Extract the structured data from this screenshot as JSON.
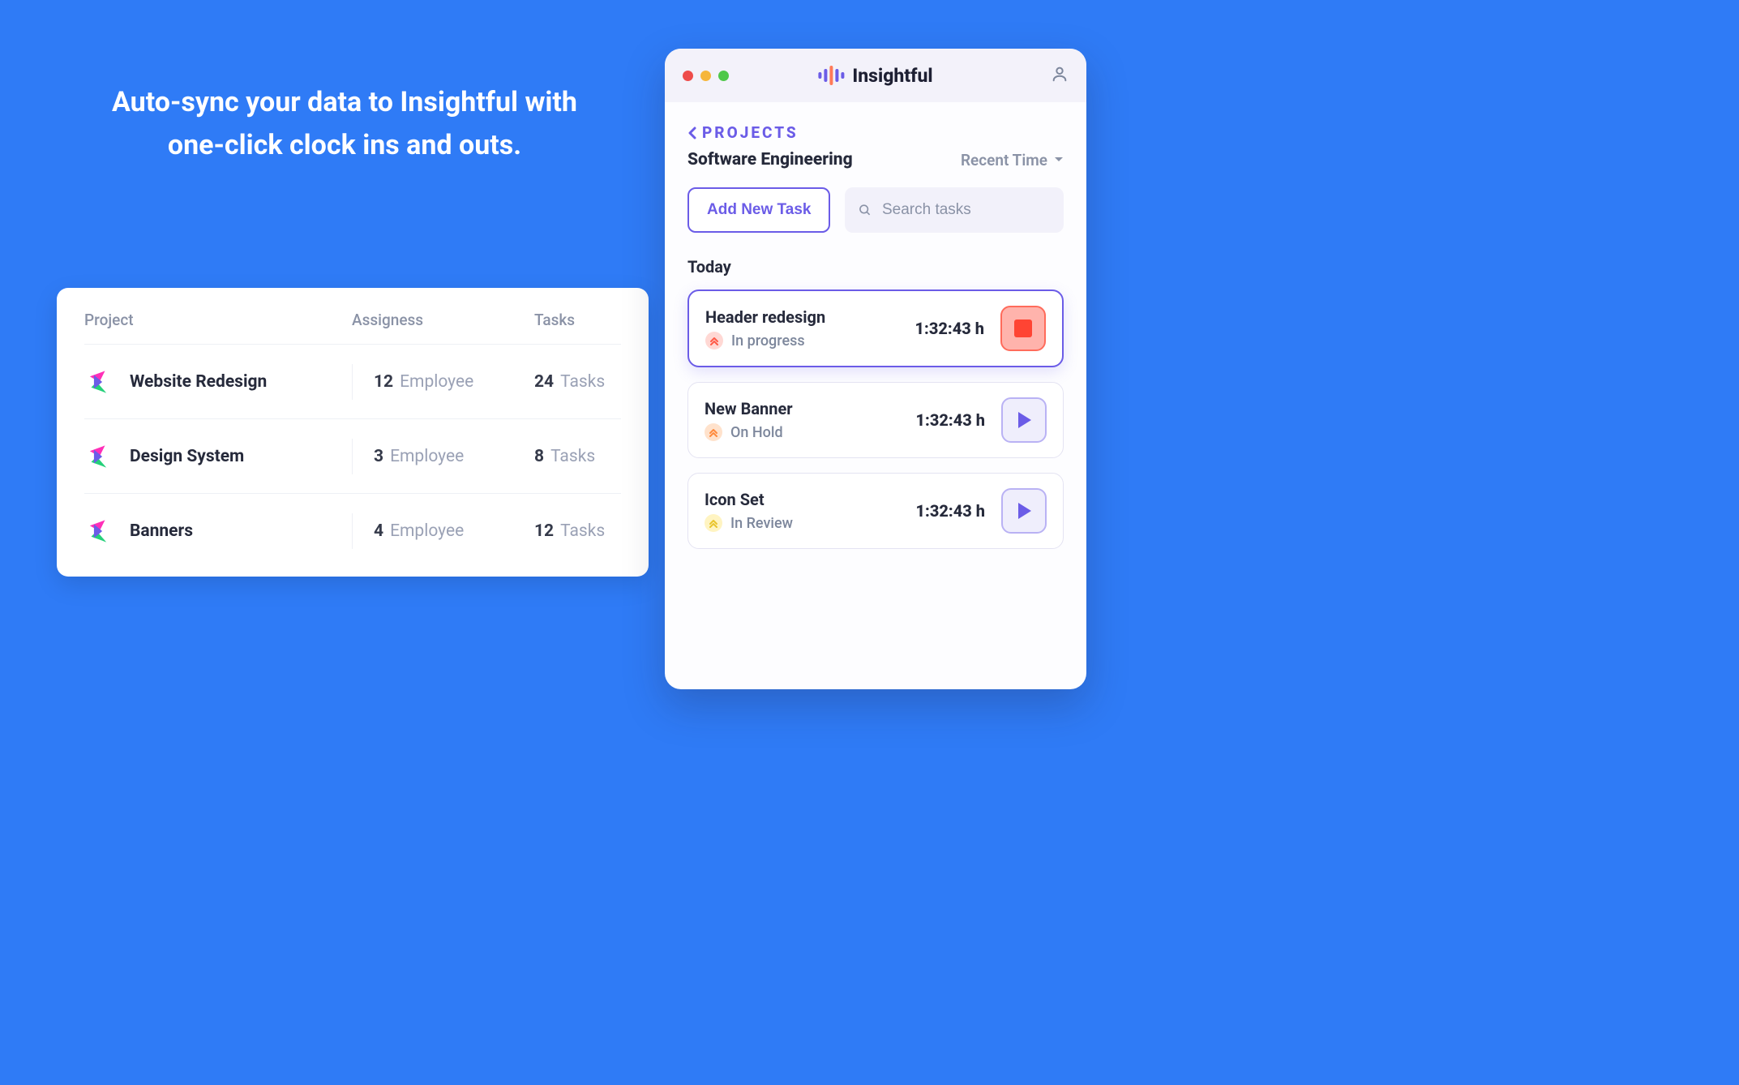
{
  "colors": {
    "page_bg": "#2f7bf6",
    "panel_bg": "#ffffff",
    "text_dark": "#262a3b",
    "text_muted": "#8a92a6",
    "accent": "#6b5ce7",
    "divider": "#eef0f5",
    "stop_fill": "#ffb3ac",
    "stop_border": "#ff6b5b",
    "stop_square": "#ff4433",
    "play_fill": "#efeefc",
    "play_border": "#b9b2f4"
  },
  "headline": "Auto-sync your data to Insightful with one-click clock ins and outs.",
  "projects_table": {
    "columns": [
      "Project",
      "Assigness",
      "Tasks"
    ],
    "rows": [
      {
        "name": "Website Redesign",
        "assignees": 12,
        "assignees_unit": "Employee",
        "tasks": 24,
        "tasks_unit": "Tasks"
      },
      {
        "name": "Design System",
        "assignees": 3,
        "assignees_unit": "Employee",
        "tasks": 8,
        "tasks_unit": "Tasks"
      },
      {
        "name": "Banners",
        "assignees": 4,
        "assignees_unit": "Employee",
        "tasks": 12,
        "tasks_unit": "Tasks"
      }
    ]
  },
  "app": {
    "brand": "Insightful",
    "breadcrumb": "PROJECTS",
    "title": "Software Engineering",
    "sort": "Recent Time",
    "add_task_label": "Add New Task",
    "search_placeholder": "Search tasks",
    "section_label": "Today",
    "tasks": [
      {
        "title": "Header redesign",
        "status": "In progress",
        "badge_bg": "#ffd8d4",
        "badge_fg": "#ff5a47",
        "time": "1:32:43 h",
        "action": "stop",
        "active": true
      },
      {
        "title": "New Banner",
        "status": "On Hold",
        "badge_bg": "#ffe2cc",
        "badge_fg": "#ff8a3d",
        "time": "1:32:43 h",
        "action": "play",
        "active": false
      },
      {
        "title": "Icon Set",
        "status": "In Review",
        "badge_bg": "#fff4c2",
        "badge_fg": "#e9c52f",
        "time": "1:32:43 h",
        "action": "play",
        "active": false
      }
    ]
  }
}
